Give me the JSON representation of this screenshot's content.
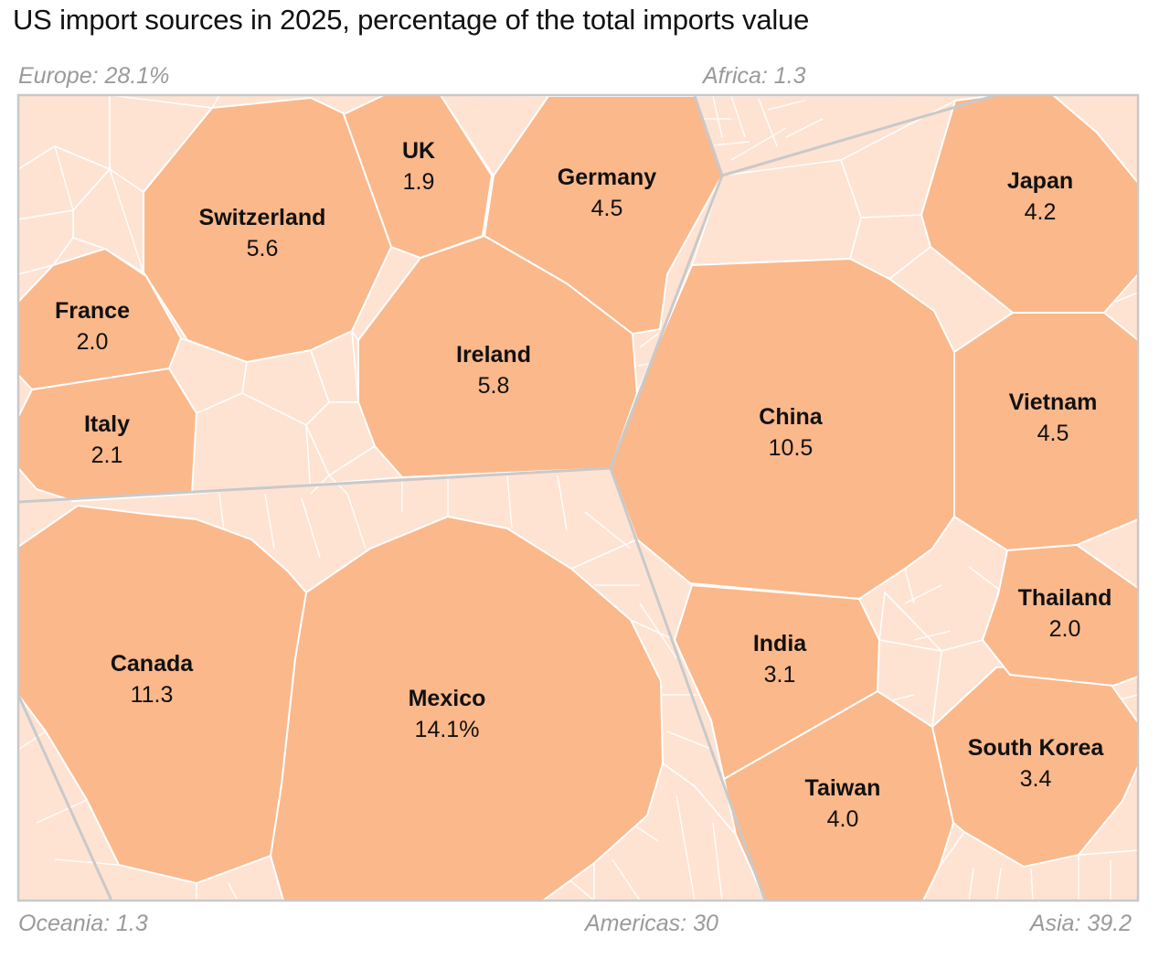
{
  "chart_data": {
    "type": "voronoi-treemap",
    "title": "US import sources in 2025, percentage of the total imports value",
    "colors": {
      "major_fill": "#fbb88b",
      "minor_fill": "#fee3d3",
      "cell_stroke": "#ffffff",
      "region_stroke": "#c9c9c9",
      "region_label": "#9a9a9a"
    },
    "regions": [
      {
        "id": "europe",
        "label": "Europe: 28.1%",
        "value": 28.1
      },
      {
        "id": "africa",
        "label": "Africa: 1.3",
        "value": 1.3
      },
      {
        "id": "oceania",
        "label": "Oceania: 1.3",
        "value": 1.3
      },
      {
        "id": "americas",
        "label": "Americas: 30",
        "value": 30
      },
      {
        "id": "asia",
        "label": "Asia: 39.2",
        "value": 39.2
      }
    ],
    "countries": [
      {
        "id": "mexico",
        "name": "Mexico",
        "region": "americas",
        "value": 14.1,
        "label": "14.1%"
      },
      {
        "id": "canada",
        "name": "Canada",
        "region": "americas",
        "value": 11.3,
        "label": "11.3"
      },
      {
        "id": "china",
        "name": "China",
        "region": "asia",
        "value": 10.5,
        "label": "10.5"
      },
      {
        "id": "ireland",
        "name": "Ireland",
        "region": "europe",
        "value": 5.8,
        "label": "5.8"
      },
      {
        "id": "switzerland",
        "name": "Switzerland",
        "region": "europe",
        "value": 5.6,
        "label": "5.6"
      },
      {
        "id": "germany",
        "name": "Germany",
        "region": "europe",
        "value": 4.5,
        "label": "4.5"
      },
      {
        "id": "vietnam",
        "name": "Vietnam",
        "region": "asia",
        "value": 4.5,
        "label": "4.5"
      },
      {
        "id": "japan",
        "name": "Japan",
        "region": "asia",
        "value": 4.2,
        "label": "4.2"
      },
      {
        "id": "taiwan",
        "name": "Taiwan",
        "region": "asia",
        "value": 4.0,
        "label": "4.0"
      },
      {
        "id": "south-korea",
        "name": "South Korea",
        "region": "asia",
        "value": 3.4,
        "label": "3.4"
      },
      {
        "id": "india",
        "name": "India",
        "region": "asia",
        "value": 3.1,
        "label": "3.1"
      },
      {
        "id": "italy",
        "name": "Italy",
        "region": "europe",
        "value": 2.1,
        "label": "2.1"
      },
      {
        "id": "france",
        "name": "France",
        "region": "europe",
        "value": 2.0,
        "label": "2.0"
      },
      {
        "id": "thailand",
        "name": "Thailand",
        "region": "asia",
        "value": 2.0,
        "label": "2.0"
      },
      {
        "id": "uk",
        "name": "UK",
        "region": "europe",
        "value": 1.9,
        "label": "1.9"
      }
    ]
  }
}
